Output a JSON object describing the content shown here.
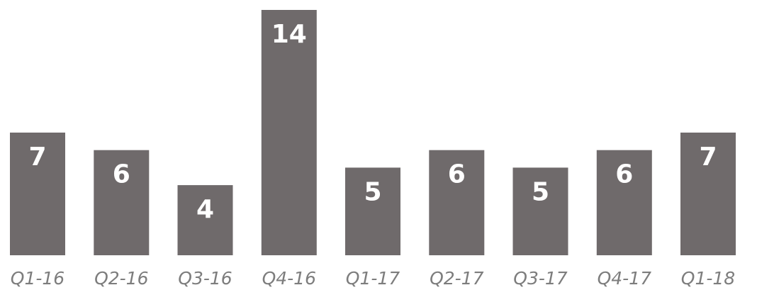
{
  "chart_data": {
    "type": "bar",
    "categories": [
      "Q1-16",
      "Q2-16",
      "Q3-16",
      "Q4-16",
      "Q1-17",
      "Q2-17",
      "Q3-17",
      "Q4-17",
      "Q1-18"
    ],
    "values": [
      7,
      6,
      4,
      14,
      5,
      6,
      5,
      6,
      7
    ],
    "title": "",
    "xlabel": "",
    "ylabel": "",
    "ylim": [
      0,
      14
    ],
    "grid": false,
    "legend": "none",
    "data_labels": true,
    "colors": {
      "bar": "#6f6a6b",
      "bar_value_text": "#ffffff",
      "tick_label_text": "#7d7d7d"
    }
  }
}
